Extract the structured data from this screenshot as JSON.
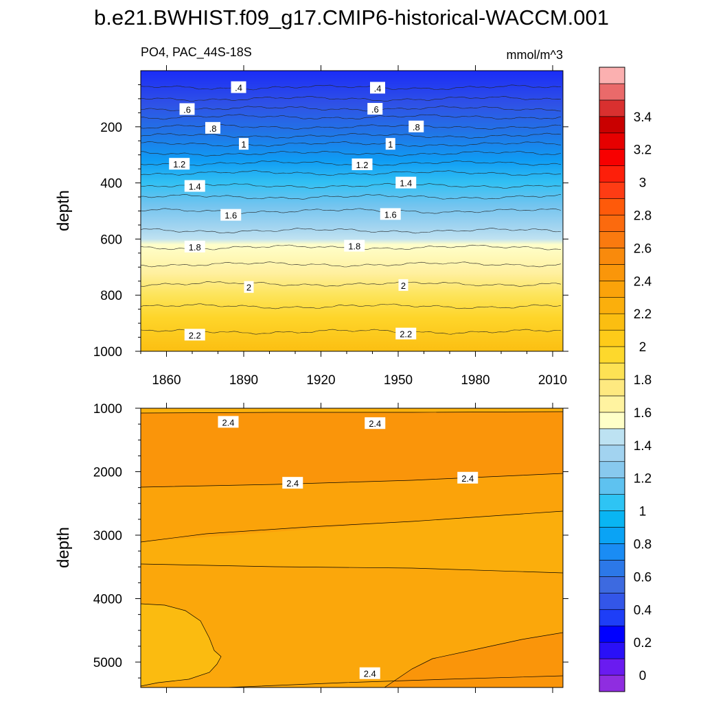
{
  "title": "b.e21.BWHIST.f09_g17.CMIP6-historical-WACCM.001",
  "chart_data": [
    {
      "type": "heatmap",
      "subtype": "filled-contour",
      "panel": "upper",
      "left_label": "PO4, PAC_44S-18S",
      "right_label": "mmol/m^3",
      "xlabel": "",
      "ylabel": "depth",
      "xlim": [
        1850,
        2014
      ],
      "ylim": [
        1000,
        0
      ],
      "x_ticks": [
        1860,
        1890,
        1920,
        1950,
        1980,
        2010
      ],
      "y_ticks": [
        200,
        400,
        600,
        800,
        1000
      ],
      "contour_levels": [
        0.4,
        0.6,
        0.8,
        1.0,
        1.2,
        1.4,
        1.6,
        1.8,
        2.0,
        2.2
      ],
      "contour_depths": [
        {
          "level": 0.4,
          "depth": 60,
          "label": ".4"
        },
        {
          "level": 0.5,
          "depth": 100,
          "label": ""
        },
        {
          "level": 0.6,
          "depth": 135,
          "label": ".6"
        },
        {
          "level": 0.7,
          "depth": 165,
          "label": ""
        },
        {
          "level": 0.8,
          "depth": 200,
          "label": ".8"
        },
        {
          "level": 0.9,
          "depth": 232,
          "label": ""
        },
        {
          "level": 1.0,
          "depth": 262,
          "label": "1"
        },
        {
          "level": 1.1,
          "depth": 295,
          "label": ""
        },
        {
          "level": 1.2,
          "depth": 330,
          "label": "1.2"
        },
        {
          "level": 1.3,
          "depth": 365,
          "label": ""
        },
        {
          "level": 1.4,
          "depth": 410,
          "label": "1.4"
        },
        {
          "level": 1.5,
          "depth": 450,
          "label": ""
        },
        {
          "level": 1.6,
          "depth": 500,
          "label": "1.6"
        },
        {
          "level": 1.7,
          "depth": 570,
          "label": ""
        },
        {
          "level": 1.8,
          "depth": 630,
          "label": "1.8"
        },
        {
          "level": 1.9,
          "depth": 690,
          "label": ""
        },
        {
          "level": 2.0,
          "depth": 760,
          "label": "2"
        },
        {
          "level": 2.1,
          "depth": 840,
          "label": ""
        },
        {
          "level": 2.2,
          "depth": 930,
          "label": "2.2"
        }
      ],
      "contour_labels": [
        {
          "text": ".4",
          "year": 1888,
          "depth": 60
        },
        {
          "text": ".4",
          "year": 1942,
          "depth": 62
        },
        {
          "text": ".6",
          "year": 1868,
          "depth": 138
        },
        {
          "text": ".6",
          "year": 1941,
          "depth": 137
        },
        {
          "text": ".8",
          "year": 1878,
          "depth": 205
        },
        {
          "text": ".8",
          "year": 1957,
          "depth": 200
        },
        {
          "text": "1",
          "year": 1890,
          "depth": 262
        },
        {
          "text": "1",
          "year": 1947,
          "depth": 262
        },
        {
          "text": "1.2",
          "year": 1865,
          "depth": 333
        },
        {
          "text": "1.2",
          "year": 1936,
          "depth": 335
        },
        {
          "text": "1.4",
          "year": 1871,
          "depth": 412
        },
        {
          "text": "1.4",
          "year": 1953,
          "depth": 400
        },
        {
          "text": "1.6",
          "year": 1885,
          "depth": 515
        },
        {
          "text": "1.6",
          "year": 1947,
          "depth": 512
        },
        {
          "text": "1.8",
          "year": 1871,
          "depth": 628
        },
        {
          "text": "1.8",
          "year": 1933,
          "depth": 625
        },
        {
          "text": "2",
          "year": 1892,
          "depth": 772
        },
        {
          "text": "2",
          "year": 1952,
          "depth": 765
        },
        {
          "text": "2.2",
          "year": 1871,
          "depth": 942
        },
        {
          "text": "2.2",
          "year": 1953,
          "depth": 938
        }
      ]
    },
    {
      "type": "heatmap",
      "subtype": "filled-contour",
      "panel": "lower",
      "xlabel": "",
      "ylabel": "depth",
      "xlim": [
        1850,
        2014
      ],
      "ylim": [
        5400,
        1000
      ],
      "y_ticks": [
        1000,
        2000,
        3000,
        4000,
        5000
      ],
      "contour_levels": [
        2.3,
        2.4,
        2.5
      ],
      "contour_labels": [
        {
          "text": "2.4",
          "year": 1884,
          "depth": 1220
        },
        {
          "text": "2.4",
          "year": 1941,
          "depth": 1240
        },
        {
          "text": "2.4",
          "year": 1909,
          "depth": 2180
        },
        {
          "text": "2.4",
          "year": 1977,
          "depth": 2100
        },
        {
          "text": "2.4",
          "year": 1939,
          "depth": 5180
        }
      ]
    }
  ],
  "colorbar": {
    "tick_labels": [
      "0",
      "0.2",
      "0.4",
      "0.6",
      "0.8",
      "1",
      "1.2",
      "1.4",
      "1.6",
      "1.8",
      "2",
      "2.2",
      "2.4",
      "2.6",
      "2.8",
      "3",
      "3.2",
      "3.4"
    ],
    "colors": [
      "#8f2de0",
      "#6a1bf0",
      "#2a10f7",
      "#0000ff",
      "#1e3ef7",
      "#3356e8",
      "#3d6ae0",
      "#2c78e8",
      "#1a8cf4",
      "#0aa3f5",
      "#09b5f3",
      "#2ec4f4",
      "#5ec2f0",
      "#88c9ee",
      "#a2d3f0",
      "#bde2f2",
      "#ffffc8",
      "#fff3a0",
      "#fee980",
      "#fde254",
      "#fdd82c",
      "#fecb19",
      "#fbbe11",
      "#fbaf0c",
      "#fba30a",
      "#fa960a",
      "#f98a0c",
      "#fa7a0f",
      "#fb6a0e",
      "#fe5a0a",
      "#fe3c14",
      "#fd1f0a",
      "#f70000",
      "#e60000",
      "#c90000",
      "#d9302f",
      "#ea6a6a",
      "#fbb0b0"
    ]
  }
}
